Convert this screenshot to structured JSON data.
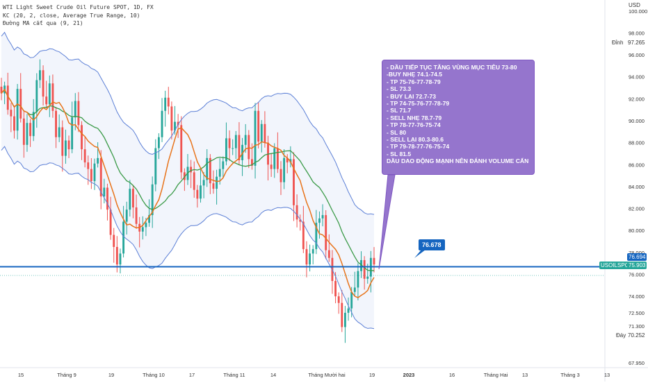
{
  "legend": {
    "line1": "WTI Light Sweet Crude Oil Future SPOT, 1D, FX",
    "line2": "KC (20, 2, close, Average True Range, 10)",
    "line3": "Đường MA cắt qua (9, 21)"
  },
  "axis": {
    "currency": "USD",
    "price_ticks": [
      "100.000",
      "98.000",
      "96.000",
      "94.000",
      "92.000",
      "90.000",
      "88.000",
      "86.000",
      "84.000",
      "82.000",
      "80.000",
      "78.000",
      "76.000",
      "74.000",
      "72.500",
      "71.300",
      "67.950"
    ],
    "time_ticks": [
      "15",
      "Tháng 9",
      "19",
      "Tháng 10",
      "17",
      "Tháng 11",
      "14",
      "Tháng Mười hai",
      "19",
      "2023",
      "16",
      "Tháng Hai",
      "13",
      "Tháng 3",
      "13"
    ]
  },
  "labels": {
    "high_label": "Đỉnh",
    "high_value": "97.265",
    "low_label": "Đáy",
    "low_value": "70.252",
    "line_price": "76.694",
    "symbol": "USOILSPOT",
    "last_price": "75.903",
    "line_callout": "76.678"
  },
  "callout": {
    "lines": [
      "- DẦU TIẾP TỤC TĂNG VÙNG MỤC TIÊU 73-80",
      "-BUY NHẸ 74.1-74.5",
      "- TP 75-76-77-78-79",
      "- SL 73.3",
      "- BUY LẠI 72.7-73",
      "- TP 74-75-76-77-78-79",
      "- SL 71.7",
      "- SELL NHẸ 78.7-79",
      "- TP 78-77-76-75-74",
      "- SL 80",
      "- SELL LẠI 80.3-80.6",
      "- TP 79-78-77-76-75-74",
      "- SL 81.5",
      "DẦU DAO ĐỘNG MẠNH NÊN ĐÁNH VOLUME CẨN THẬN"
    ]
  },
  "colors": {
    "bull": "#26a69a",
    "bear": "#ef5350",
    "channel": "#5b7fd6",
    "ma_fast": "#e8731a",
    "ma_slow": "#3a9a47",
    "hline": "#1565c0",
    "callout": "#9575cd"
  },
  "chart_data": {
    "type": "candlestick",
    "symbol": "USOILSPOT",
    "timeframe": "1D",
    "ylim": [
      67.5,
      101
    ],
    "horizontal_line": 76.694,
    "last_price": 75.903,
    "high": 97.265,
    "low": 70.252,
    "close_series": [
      92.5,
      93.2,
      91.0,
      90.4,
      89.1,
      92.9,
      90.2,
      87.8,
      89.8,
      88.6,
      90.8,
      93.7,
      94.6,
      92.2,
      91.5,
      93.4,
      90.9,
      88.5,
      89.4,
      86.8,
      88.2,
      87.4,
      90.3,
      91.8,
      89.6,
      87.4,
      86.2,
      85.6,
      84.5,
      86.1,
      86.6,
      83.1,
      83.9,
      81.9,
      79.6,
      78.5,
      76.9,
      77.9,
      80.8,
      81.9,
      83.8,
      82.1,
      80.6,
      79.9,
      80.3,
      80.7,
      81.4,
      84.2,
      87.5,
      88.5,
      90.9,
      92.1,
      91.3,
      89.1,
      89.9,
      89.6,
      85.3,
      84.6,
      85.8,
      85.3,
      83.7,
      82.9,
      84.1,
      84.6,
      86.6,
      84.3,
      83.8,
      84.9,
      85.6,
      86.3,
      88.4,
      87.5,
      87.5,
      88.7,
      86.4,
      87.8,
      88.7,
      86.5,
      85.9,
      90.9,
      88.1,
      89.7,
      88.0,
      86.0,
      85.6,
      87.5,
      85.6,
      84.4,
      86.6,
      86.2,
      86.5,
      82.3,
      81.0,
      80.8,
      78.3,
      76.9,
      77.9,
      78.3,
      80.7,
      81.1,
      81.4,
      78.2,
      77.5,
      75.4,
      74.0,
      73.4,
      71.2,
      72.5,
      72.9,
      74.4,
      74.8,
      76.3,
      77.3,
      75.6,
      75.8,
      77.5,
      76.9
    ]
  }
}
